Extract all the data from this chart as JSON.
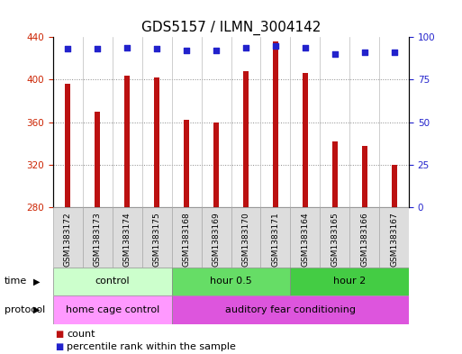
{
  "title": "GDS5157 / ILMN_3004142",
  "samples": [
    "GSM1383172",
    "GSM1383173",
    "GSM1383174",
    "GSM1383175",
    "GSM1383168",
    "GSM1383169",
    "GSM1383170",
    "GSM1383171",
    "GSM1383164",
    "GSM1383165",
    "GSM1383166",
    "GSM1383167"
  ],
  "bar_values": [
    396,
    370,
    404,
    402,
    362,
    360,
    408,
    436,
    406,
    342,
    338,
    320
  ],
  "percentile_values": [
    93,
    93,
    94,
    93,
    92,
    92,
    94,
    95,
    94,
    90,
    91,
    91
  ],
  "bar_color": "#bb1111",
  "dot_color": "#2222cc",
  "ylim_left": [
    280,
    440
  ],
  "ylim_right": [
    0,
    100
  ],
  "yticks_left": [
    280,
    320,
    360,
    400,
    440
  ],
  "yticks_right": [
    0,
    25,
    50,
    75,
    100
  ],
  "time_groups": [
    {
      "label": "control",
      "start": 0,
      "end": 4,
      "color": "#ccffcc"
    },
    {
      "label": "hour 0.5",
      "start": 4,
      "end": 8,
      "color": "#66dd66"
    },
    {
      "label": "hour 2",
      "start": 8,
      "end": 12,
      "color": "#44cc44"
    }
  ],
  "protocol_groups": [
    {
      "label": "home cage control",
      "start": 0,
      "end": 4,
      "color": "#ff99ff"
    },
    {
      "label": "auditory fear conditioning",
      "start": 4,
      "end": 12,
      "color": "#dd55dd"
    }
  ],
  "legend_items": [
    {
      "label": "count",
      "color": "#bb1111"
    },
    {
      "label": "percentile rank within the sample",
      "color": "#2222cc"
    }
  ],
  "background_color": "#ffffff",
  "grid_color": "#888888",
  "bar_width": 0.18,
  "left_label_color": "#cc2200",
  "right_label_color": "#2222cc",
  "title_fontsize": 11,
  "tick_fontsize": 7.5,
  "xtick_bg_color": "#dddddd"
}
